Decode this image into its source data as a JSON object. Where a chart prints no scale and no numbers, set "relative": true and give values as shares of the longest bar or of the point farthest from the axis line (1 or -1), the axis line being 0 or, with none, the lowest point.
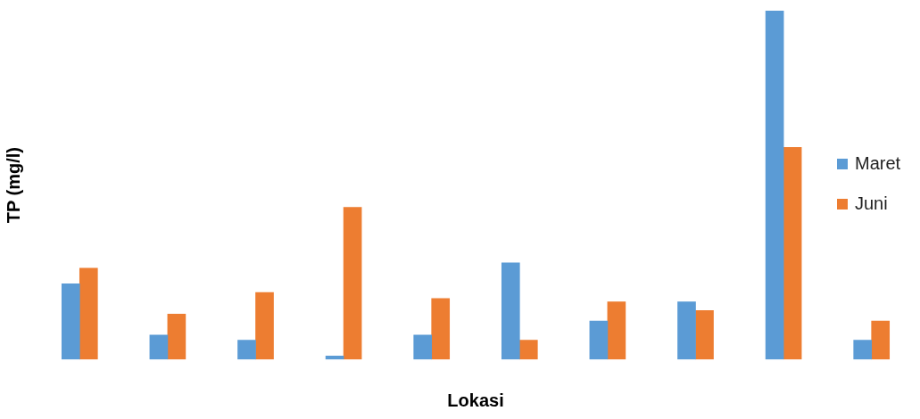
{
  "chart_data": {
    "type": "bar",
    "relative": true,
    "xlabel": "Lokasi",
    "ylabel": "TP (mg/l)",
    "legend": "right",
    "grid": false,
    "categories": [
      null,
      null,
      null,
      null,
      null,
      null,
      null,
      null,
      null,
      null
    ],
    "series": [
      {
        "name": "Maret",
        "color": "#5b9bd5",
        "values": [
          0.217,
          0.07,
          0.055,
          0.01,
          0.07,
          0.277,
          0.11,
          0.165,
          1,
          0.055
        ]
      },
      {
        "name": "Juni",
        "color": "#ed7d31",
        "values": [
          0.262,
          0.13,
          0.192,
          0.436,
          0.175,
          0.055,
          0.165,
          0.14,
          0.608,
          0.11
        ]
      }
    ]
  }
}
